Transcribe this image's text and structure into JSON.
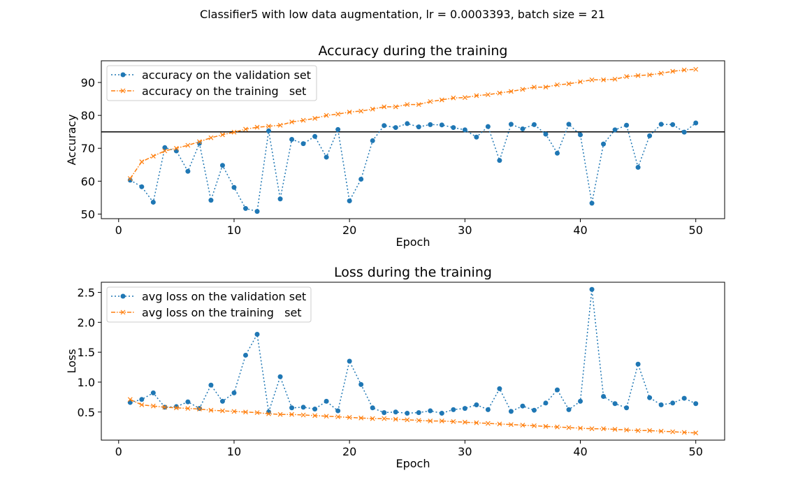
{
  "suptitle": "Classifier5 with low data augmentation, lr = 0.0003393, batch size = 21",
  "colors": {
    "series1": "#1f77b4",
    "series2": "#ff7f0e",
    "hline": "#000000"
  },
  "chart_data": [
    {
      "type": "line",
      "title": "Accuracy during the training",
      "xlabel": "Epoch",
      "ylabel": "Accuracy",
      "xlim": [
        -1.5,
        52.5
      ],
      "ylim": [
        48.6,
        96.6
      ],
      "xticks": [
        0,
        10,
        20,
        30,
        40,
        50
      ],
      "yticks": [
        50,
        60,
        70,
        80,
        90
      ],
      "hline": 75,
      "legend_position": "upper-left",
      "x": [
        1,
        2,
        3,
        4,
        5,
        6,
        7,
        8,
        9,
        10,
        11,
        12,
        13,
        14,
        15,
        16,
        17,
        18,
        19,
        20,
        21,
        22,
        23,
        24,
        25,
        26,
        27,
        28,
        29,
        30,
        31,
        32,
        33,
        34,
        35,
        36,
        37,
        38,
        39,
        40,
        41,
        42,
        43,
        44,
        45,
        46,
        47,
        48,
        49,
        50
      ],
      "series": [
        {
          "name": "accuracy on the validation set",
          "marker": "circle",
          "color": "#1f77b4",
          "values": [
            60.3,
            58.3,
            53.6,
            70.2,
            69.2,
            63.0,
            71.5,
            54.2,
            64.8,
            58.1,
            51.7,
            50.8,
            75.3,
            54.6,
            72.7,
            71.4,
            73.6,
            67.3,
            75.7,
            54.0,
            60.6,
            72.3,
            76.9,
            76.3,
            77.5,
            76.5,
            77.2,
            77.1,
            76.3,
            75.6,
            73.4,
            76.6,
            66.3,
            77.3,
            75.9,
            77.2,
            74.3,
            68.5,
            77.3,
            74.1,
            53.3,
            71.3,
            75.6,
            77.0,
            64.2,
            73.8,
            77.3,
            77.2,
            74.9,
            77.7
          ]
        },
        {
          "name": "accuracy on the training   set",
          "marker": "x",
          "color": "#ff7f0e",
          "values": [
            60.8,
            65.9,
            67.6,
            69.2,
            70.0,
            70.9,
            72.0,
            73.2,
            74.1,
            74.9,
            75.8,
            76.4,
            76.7,
            77.0,
            78.0,
            78.5,
            79.1,
            80.0,
            80.4,
            81.0,
            81.3,
            81.9,
            82.6,
            82.6,
            83.3,
            83.3,
            84.2,
            84.7,
            85.3,
            85.4,
            86.0,
            86.3,
            86.8,
            87.3,
            87.9,
            88.6,
            88.6,
            89.3,
            89.6,
            90.2,
            90.8,
            90.8,
            91.0,
            91.8,
            92.1,
            92.3,
            92.8,
            93.4,
            93.8,
            94.0
          ]
        }
      ]
    },
    {
      "type": "line",
      "title": "Loss during the training",
      "xlabel": "Epoch",
      "ylabel": "Loss",
      "xlim": [
        -1.5,
        52.5
      ],
      "ylim": [
        0.03,
        2.67
      ],
      "xticks": [
        0,
        10,
        20,
        30,
        40,
        50
      ],
      "yticks": [
        0.5,
        1.0,
        1.5,
        2.0,
        2.5
      ],
      "ytick_labels": [
        "0.5",
        "1.0",
        "1.5",
        "2.0",
        "2.5"
      ],
      "legend_position": "upper-left",
      "x": [
        1,
        2,
        3,
        4,
        5,
        6,
        7,
        8,
        9,
        10,
        11,
        12,
        13,
        14,
        15,
        16,
        17,
        18,
        19,
        20,
        21,
        22,
        23,
        24,
        25,
        26,
        27,
        28,
        29,
        30,
        31,
        32,
        33,
        34,
        35,
        36,
        37,
        38,
        39,
        40,
        41,
        42,
        43,
        44,
        45,
        46,
        47,
        48,
        49,
        50
      ],
      "series": [
        {
          "name": "avg loss on the validation set",
          "marker": "circle",
          "color": "#1f77b4",
          "values": [
            0.66,
            0.71,
            0.82,
            0.58,
            0.59,
            0.67,
            0.56,
            0.95,
            0.68,
            0.82,
            1.45,
            1.8,
            0.5,
            1.09,
            0.57,
            0.58,
            0.55,
            0.68,
            0.52,
            1.35,
            0.96,
            0.57,
            0.49,
            0.5,
            0.48,
            0.49,
            0.52,
            0.48,
            0.54,
            0.56,
            0.62,
            0.54,
            0.89,
            0.51,
            0.6,
            0.53,
            0.65,
            0.87,
            0.54,
            0.68,
            2.55,
            0.76,
            0.64,
            0.57,
            1.3,
            0.74,
            0.62,
            0.65,
            0.73,
            0.64
          ]
        },
        {
          "name": "avg loss on the training   set",
          "marker": "x",
          "color": "#ff7f0e",
          "values": [
            0.71,
            0.62,
            0.6,
            0.58,
            0.57,
            0.56,
            0.55,
            0.53,
            0.52,
            0.51,
            0.5,
            0.49,
            0.47,
            0.46,
            0.46,
            0.45,
            0.44,
            0.43,
            0.42,
            0.41,
            0.4,
            0.39,
            0.39,
            0.38,
            0.37,
            0.36,
            0.35,
            0.35,
            0.34,
            0.33,
            0.32,
            0.31,
            0.3,
            0.29,
            0.28,
            0.27,
            0.26,
            0.25,
            0.24,
            0.23,
            0.22,
            0.22,
            0.21,
            0.2,
            0.19,
            0.19,
            0.18,
            0.17,
            0.16,
            0.15
          ]
        }
      ]
    }
  ]
}
